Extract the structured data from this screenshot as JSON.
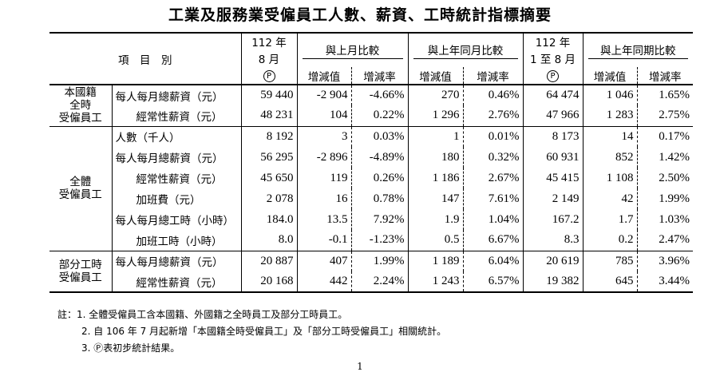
{
  "title": "工業及服務業受僱員工人數、薪資、工時統計指標摘要",
  "header": {
    "item_col": "項　目　別",
    "month_col": [
      "112 年",
      "8 月",
      "Ⓟ"
    ],
    "mom_group": "與上月比較",
    "yoy_group": "與上年同月比較",
    "ytd_col": [
      "112 年",
      "1 至 8 月",
      "Ⓟ"
    ],
    "ytd_yoy_group": "與上年同期比較",
    "sub_change": "增減值",
    "sub_rate": "增減率"
  },
  "groups": [
    {
      "label": [
        "本國籍",
        "全時",
        "受僱員工"
      ],
      "rows": [
        {
          "item": "每人每月總薪資（元）",
          "v": [
            "59 440",
            "-2 904",
            "-4.66%",
            "270",
            "0.46%",
            "64 474",
            "1 046",
            "1.65%"
          ]
        },
        {
          "item": "經常性薪資（元）",
          "v": [
            "48 231",
            "104",
            "0.22%",
            "1 296",
            "2.76%",
            "47 966",
            "1 283",
            "2.75%"
          ]
        }
      ]
    },
    {
      "label": [
        "全體",
        "受僱員工"
      ],
      "rows": [
        {
          "item": "人數（千人）",
          "v": [
            "8 192",
            "3",
            "0.03%",
            "1",
            "0.01%",
            "8 173",
            "14",
            "0.17%"
          ]
        },
        {
          "item": "每人每月總薪資（元）",
          "v": [
            "56 295",
            "-2 896",
            "-4.89%",
            "180",
            "0.32%",
            "60 931",
            "852",
            "1.42%"
          ]
        },
        {
          "item": "經常性薪資（元）",
          "v": [
            "45 650",
            "119",
            "0.26%",
            "1 186",
            "2.67%",
            "45 415",
            "1 108",
            "2.50%"
          ]
        },
        {
          "item": "加班費（元）",
          "v": [
            "2 078",
            "16",
            "0.78%",
            "147",
            "7.61%",
            "2 149",
            "42",
            "1.99%"
          ]
        },
        {
          "item": "每人每月總工時（小時）",
          "v": [
            "184.0",
            "13.5",
            "7.92%",
            "1.9",
            "1.04%",
            "167.2",
            "1.7",
            "1.03%"
          ]
        },
        {
          "item": "加班工時（小時）",
          "v": [
            "8.0",
            "-0.1",
            "-1.23%",
            "0.5",
            "6.67%",
            "8.3",
            "0.2",
            "2.47%"
          ]
        }
      ]
    },
    {
      "label": [
        "部分工時",
        "受僱員工"
      ],
      "rows": [
        {
          "item": "每人每月總薪資（元）",
          "v": [
            "20 887",
            "407",
            "1.99%",
            "1 189",
            "6.04%",
            "20 619",
            "785",
            "3.96%"
          ]
        },
        {
          "item": "經常性薪資（元）",
          "v": [
            "20 168",
            "442",
            "2.24%",
            "1 243",
            "6.57%",
            "19 382",
            "645",
            "3.44%"
          ]
        }
      ]
    }
  ],
  "notes": [
    "註：1. 全體受僱員工含本國籍、外國籍之全時員工及部分工時員工。",
    "2. 自 106 年 7 月起新增「本國籍全時受僱員工」及「部分工時受僱員工」相關統計。",
    "3. Ⓟ表初步統計結果。"
  ],
  "page_number": "1"
}
